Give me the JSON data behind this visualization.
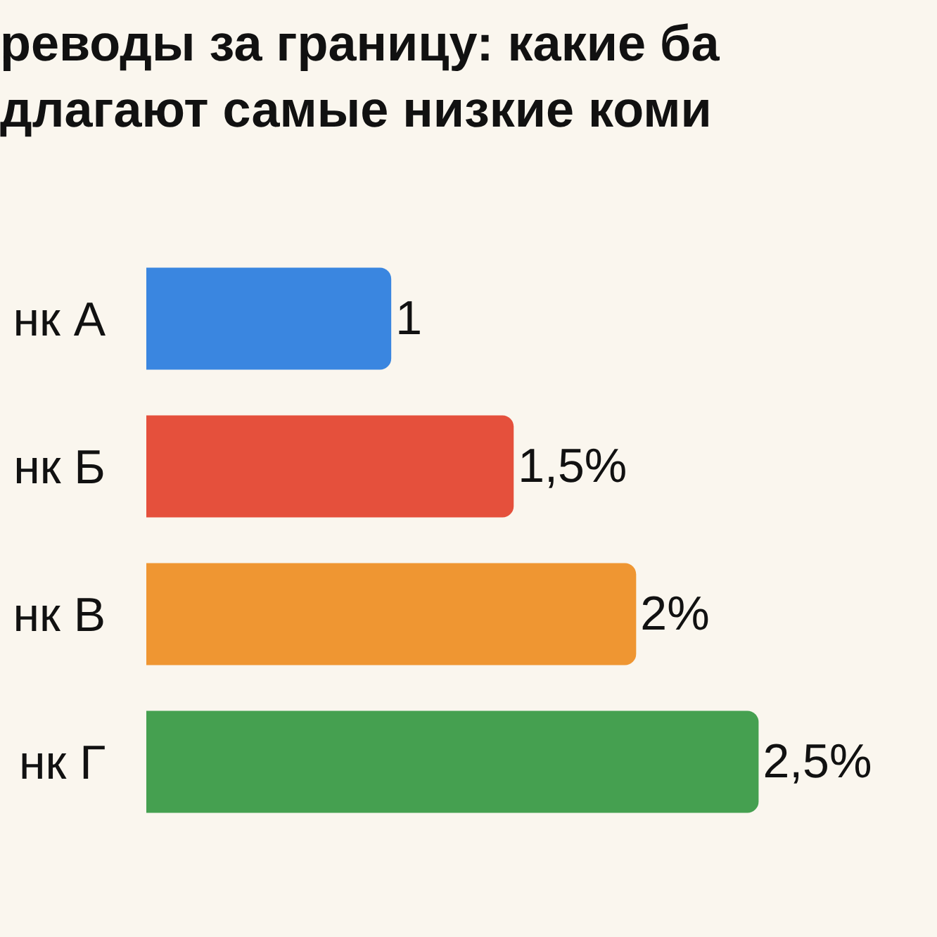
{
  "chart_data": {
    "type": "bar",
    "orientation": "horizontal",
    "title": "реводы за границу: какие ба\nдлагают самые низкие коми",
    "categories": [
      "нк А",
      "нк Б",
      "нк В",
      "нк Г"
    ],
    "values": [
      1,
      1.5,
      2,
      2.5
    ],
    "colors": [
      "#3a86e0",
      "#e5503c",
      "#ef9632",
      "#45a050"
    ],
    "value_labels": [
      "1",
      "1,5%",
      "2%",
      "2,5%"
    ],
    "grid": false,
    "legend": false
  }
}
